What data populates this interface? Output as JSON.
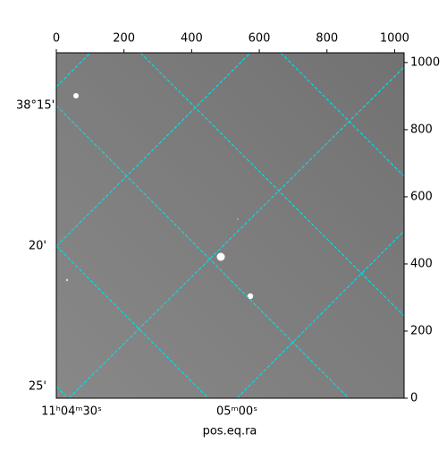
{
  "chart_data": {
    "type": "image",
    "xlabel": "pos.eq.ra",
    "xlim": [
      0,
      1028
    ],
    "xticks": [
      0,
      200,
      400,
      600,
      800,
      1000
    ],
    "ylim": [
      0,
      1029
    ],
    "yticks": [
      0,
      200,
      400,
      600,
      800,
      1000
    ],
    "world_y_labels": [
      "38°15'",
      "20'",
      "25'"
    ],
    "world_x_labels": [
      "11ʰ04ᵐ30ˢ",
      "05ᵐ00ˢ"
    ],
    "grid_color": "#00e5ee"
  }
}
